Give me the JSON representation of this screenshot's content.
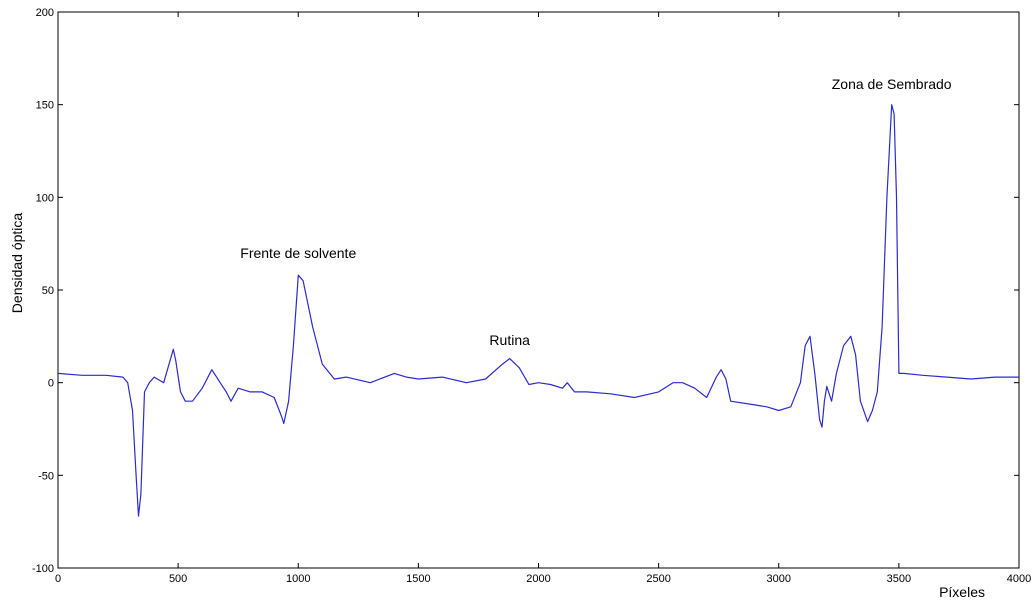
{
  "chart_data": {
    "type": "line",
    "title": "",
    "xlabel": "Píxeles",
    "ylabel": "Densidad óptica",
    "xlim": [
      0,
      4000
    ],
    "ylim": [
      -100,
      200
    ],
    "xticks": [
      0,
      500,
      1000,
      1500,
      2000,
      2500,
      3000,
      3500,
      4000
    ],
    "yticks": [
      -100,
      -50,
      0,
      50,
      100,
      150,
      200
    ],
    "xtick_labels": [
      "0",
      "500",
      "1000",
      "1500",
      "2000",
      "2500",
      "3000",
      "3500",
      "4000"
    ],
    "ytick_labels": [
      "-100",
      "-50",
      "0",
      "50",
      "100",
      "150",
      "200"
    ],
    "grid": false,
    "legend": "none",
    "line_color": "#2b2bcf",
    "series": [
      {
        "x": [
          0,
          100,
          200,
          270,
          290,
          310,
          325,
          335,
          345,
          360,
          380,
          400,
          440,
          480,
          490,
          510,
          530,
          560,
          600,
          640,
          660,
          700,
          720,
          750,
          800,
          850,
          900,
          930,
          940,
          960,
          980,
          1000,
          1020,
          1060,
          1100,
          1150,
          1200,
          1300,
          1400,
          1450,
          1500,
          1600,
          1700,
          1780,
          1850,
          1880,
          1920,
          1960,
          2000,
          2050,
          2100,
          2120,
          2150,
          2200,
          2300,
          2400,
          2500,
          2560,
          2600,
          2650,
          2700,
          2740,
          2760,
          2780,
          2800,
          2900,
          2950,
          3000,
          3050,
          3090,
          3110,
          3130,
          3150,
          3170,
          3180,
          3190,
          3200,
          3220,
          3240,
          3270,
          3300,
          3320,
          3340,
          3370,
          3390,
          3410,
          3430,
          3450,
          3470,
          3480,
          3490,
          3500,
          3520,
          3600,
          3700,
          3800,
          3900,
          4000
        ],
        "y": [
          5,
          4,
          4,
          3,
          0,
          -15,
          -50,
          -72,
          -60,
          -5,
          0,
          3,
          0,
          18,
          12,
          -5,
          -10,
          -10,
          -3,
          7,
          3,
          -5,
          -10,
          -3,
          -5,
          -5,
          -8,
          -18,
          -22,
          -10,
          20,
          58,
          55,
          30,
          10,
          2,
          3,
          0,
          5,
          3,
          2,
          3,
          0,
          2,
          10,
          13,
          8,
          -1,
          0,
          -1,
          -3,
          0,
          -5,
          -5,
          -6,
          -8,
          -5,
          0,
          0,
          -3,
          -8,
          3,
          7,
          2,
          -10,
          -12,
          -13,
          -15,
          -13,
          0,
          20,
          25,
          5,
          -20,
          -24,
          -10,
          -2,
          -10,
          5,
          20,
          25,
          15,
          -10,
          -21,
          -15,
          -5,
          30,
          100,
          150,
          145,
          100,
          5,
          5,
          4,
          3,
          2,
          3,
          3
        ]
      }
    ],
    "annotations": [
      {
        "text": "Frente de solvente",
        "x": 1000,
        "y": 62
      },
      {
        "text": "Rutina",
        "x": 1880,
        "y": 15
      },
      {
        "text": "Zona de Sembrado",
        "x": 3470,
        "y": 153
      }
    ]
  }
}
